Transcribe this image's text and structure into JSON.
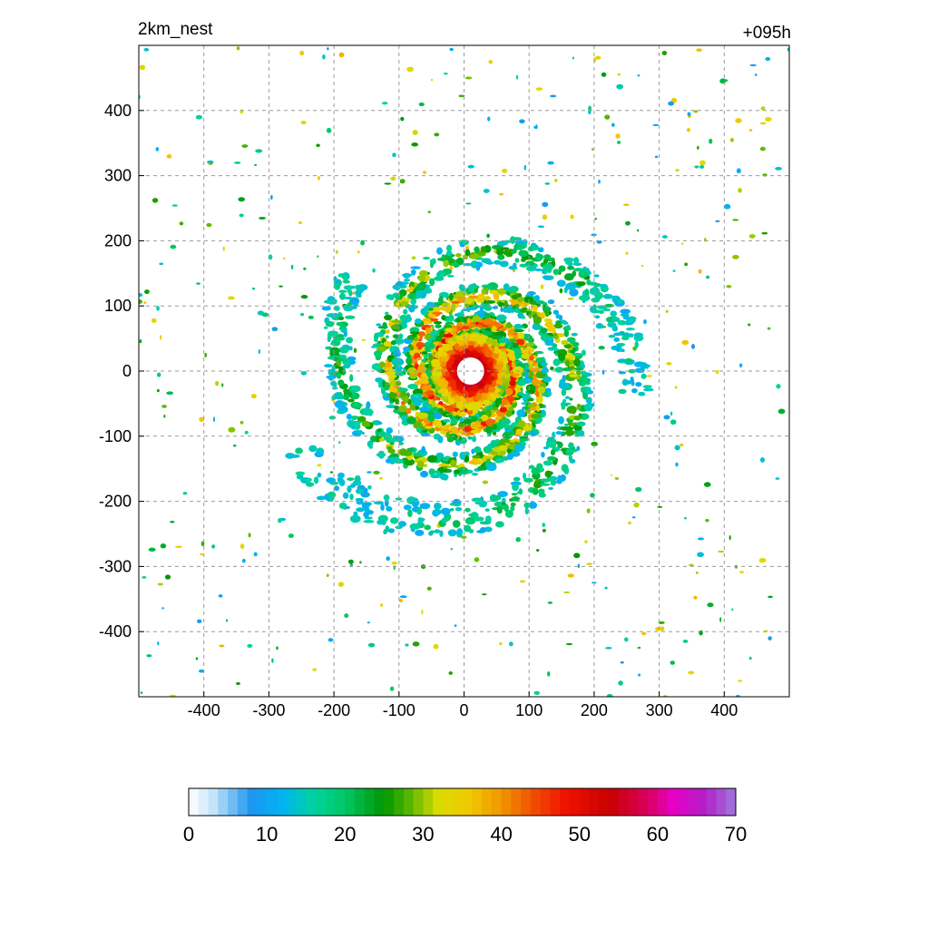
{
  "header": {
    "title": "2km_nest",
    "forecast_time": "+095h"
  },
  "chart_data": {
    "type": "heatmap",
    "title": "2km_nest",
    "annotation": "+095h",
    "xlabel": "",
    "ylabel": "",
    "xlim": [
      -500,
      500
    ],
    "ylim": [
      -500,
      500
    ],
    "grid": true,
    "grid_style": "dashed",
    "x_ticks": [
      -400,
      -300,
      -200,
      -100,
      0,
      100,
      200,
      300,
      400
    ],
    "y_ticks": [
      400,
      300,
      200,
      100,
      0,
      -100,
      -200,
      -300,
      -400
    ],
    "x_tick_labels": [
      "-400",
      "-300",
      "-200",
      "-100",
      "0",
      "100",
      "200",
      "300",
      "400"
    ],
    "y_tick_labels": [
      "400",
      "300",
      "200",
      "100",
      "0",
      "-100",
      "-200",
      "-300",
      "-400"
    ],
    "field": {
      "description_visible": "spiral tropical-cyclone pattern centered near the origin with an eye about 20 units in radius",
      "eye_center": [
        10,
        0
      ],
      "eye_radius": 22,
      "max_value_band": [
        45,
        55
      ]
    },
    "colorbar": {
      "min": 0,
      "max": 70,
      "tick_values": [
        0,
        10,
        20,
        30,
        40,
        50,
        60,
        70
      ],
      "tick_labels": [
        "0",
        "10",
        "20",
        "30",
        "40",
        "50",
        "60",
        "70"
      ],
      "color_stops": [
        {
          "value": 0,
          "color": "#ffffff"
        },
        {
          "value": 3,
          "color": "#c8e6fa"
        },
        {
          "value": 8,
          "color": "#1e96f0"
        },
        {
          "value": 12,
          "color": "#00b4f0"
        },
        {
          "value": 16,
          "color": "#00d2a0"
        },
        {
          "value": 20,
          "color": "#00c864"
        },
        {
          "value": 25,
          "color": "#009600"
        },
        {
          "value": 28,
          "color": "#50b400"
        },
        {
          "value": 32,
          "color": "#dcdc00"
        },
        {
          "value": 36,
          "color": "#f0c800"
        },
        {
          "value": 40,
          "color": "#f09600"
        },
        {
          "value": 44,
          "color": "#f05000"
        },
        {
          "value": 48,
          "color": "#f01400"
        },
        {
          "value": 54,
          "color": "#c80000"
        },
        {
          "value": 59,
          "color": "#dc0064"
        },
        {
          "value": 62,
          "color": "#e600c8"
        },
        {
          "value": 66,
          "color": "#b41ec8"
        },
        {
          "value": 70,
          "color": "#a078dc"
        }
      ]
    }
  }
}
